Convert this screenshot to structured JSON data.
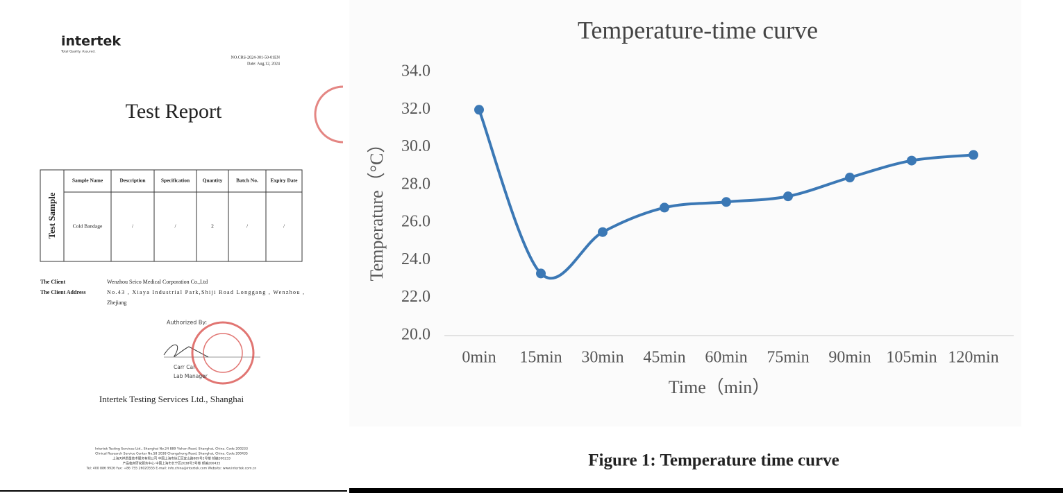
{
  "document": {
    "logo": "intertek",
    "tagline": "Total Quality. Assured.",
    "report_no": "NO.CRS-2024-301-50-01EN",
    "date": "Date: Aug.12, 2024",
    "title": "Test Report",
    "table": {
      "row_header": "Test Sample",
      "columns": [
        "Sample Name",
        "Description",
        "Specification",
        "Quantity",
        "Batch No.",
        "Expiry Date"
      ],
      "rows": [
        [
          "Cold Bandage",
          "/",
          "/",
          "2",
          "/",
          "/"
        ]
      ]
    },
    "client_label": "The Client",
    "client": "Wenzhou Seico Medical Corporation Co.,Ltd",
    "address_label": "The Client Address",
    "address_lines": [
      "No.43 , Xiaya Industrial Park,Shiji Road Longgang , Wenzhou ,",
      "Zhejiang"
    ],
    "authorized_by": "Authorized By:",
    "signatory": "Carr Cai",
    "signatory_title": "Lab Manager",
    "company": "Intertek Testing Services Ltd., Shanghai",
    "footer": [
      "Intertek Testing Services Ltd., Shanghai No.24 889 Yishan Road, Shanghai, China. Code 200233",
      "Clinical Research Service Center No.58 2038 Changshong Road, Shanghai, China. Code 200435",
      "上海天祥质量技术服务有限公司 中国上海市徐汇区宜山路889号2号楼 邮编200233",
      "产品临床研究服务中心 中国上海市长宁区2038号3号楼 邮编200435",
      "Tel: 400 886 9926   Fax: +86 755 26020555   E-mail: info.china@intertek.com   Website: www.intertek.com.cn"
    ]
  },
  "chart_data": {
    "type": "line",
    "title": "Temperature-time curve",
    "x_label": "Time（min）",
    "y_label": "Temperature（°C）",
    "caption": "Figure 1: Temperature time curve",
    "categories": [
      "0min",
      "15min",
      "30min",
      "45min",
      "60min",
      "75min",
      "90min",
      "105min",
      "120min"
    ],
    "values": [
      32.0,
      23.3,
      25.5,
      26.8,
      27.1,
      27.4,
      28.4,
      29.3,
      29.6
    ],
    "color": "#3b78b5",
    "smooth": true,
    "ylim": [
      20,
      34
    ],
    "yticks": [
      {
        "value": 20,
        "label": "20.0"
      },
      {
        "value": 22,
        "label": "22.0"
      },
      {
        "value": 24,
        "label": "24.0"
      },
      {
        "value": 26,
        "label": "26.0"
      },
      {
        "value": 28,
        "label": "28.0"
      },
      {
        "value": 30,
        "label": "30.0"
      },
      {
        "value": 32,
        "label": "32.0"
      },
      {
        "value": 34,
        "label": "34.0"
      }
    ],
    "grid": false
  }
}
